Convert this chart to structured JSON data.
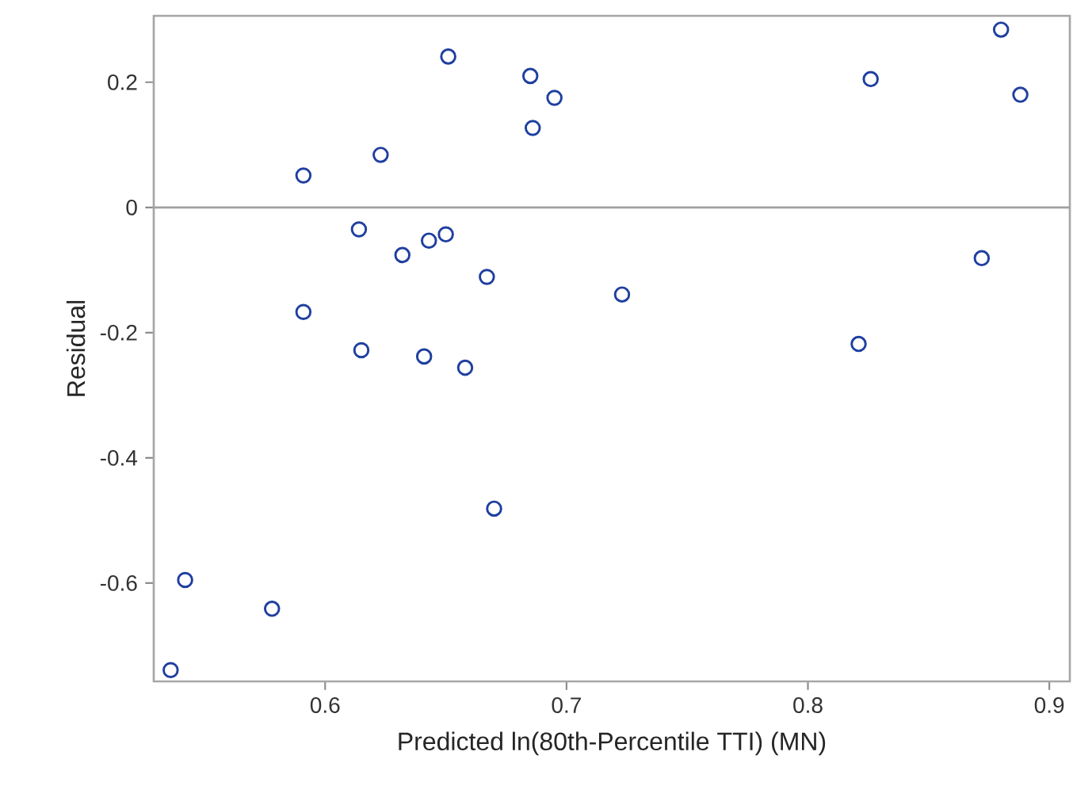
{
  "chart_data": {
    "type": "scatter",
    "xlabel": "Predicted ln(80th-Percentile TTI) (MN)",
    "ylabel": "Residual",
    "xlim": [
      0.529,
      0.9085
    ],
    "ylim": [
      -0.757,
      0.306
    ],
    "xticks": [
      0.6,
      0.7,
      0.8,
      0.9
    ],
    "yticks": [
      -0.6,
      -0.4,
      -0.2,
      0,
      0.2
    ],
    "grid": false,
    "marker": "circle",
    "ref_lines": [
      {
        "axis": "y",
        "value": 0,
        "color": "#a0a0a0"
      }
    ],
    "series": [
      {
        "color": "#1f3f9f",
        "x": [
          0.536,
          0.542,
          0.578,
          0.591,
          0.591,
          0.614,
          0.615,
          0.623,
          0.632,
          0.643,
          0.641,
          0.65,
          0.651,
          0.658,
          0.667,
          0.67,
          0.685,
          0.686,
          0.695,
          0.723,
          0.821,
          0.826,
          0.872,
          0.88,
          0.888
        ],
        "values": [
          -0.739,
          -0.595,
          -0.641,
          0.051,
          -0.167,
          -0.035,
          -0.228,
          0.084,
          -0.076,
          -0.053,
          -0.238,
          -0.043,
          0.241,
          -0.256,
          -0.111,
          -0.481,
          0.21,
          0.127,
          0.175,
          -0.139,
          -0.218,
          0.205,
          -0.081,
          0.284,
          0.18
        ]
      }
    ]
  }
}
